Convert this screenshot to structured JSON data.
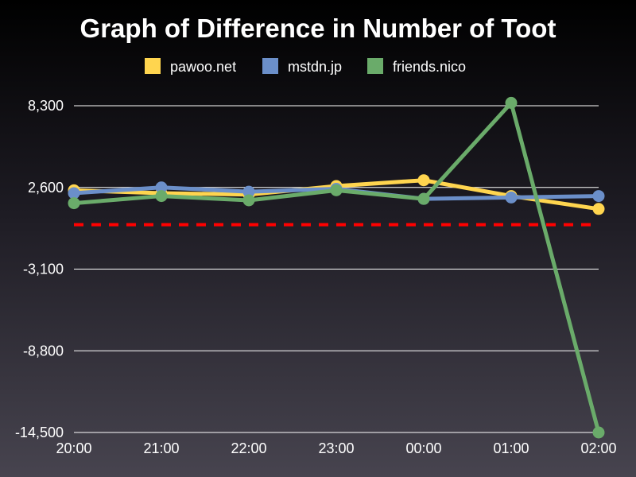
{
  "chart_data": {
    "type": "line",
    "title": "Graph of Difference in Number of Toot",
    "categories": [
      "20:00",
      "21:00",
      "22:00",
      "23:00",
      "00:00",
      "01:00",
      "02:00"
    ],
    "y_ticks": [
      "8,300",
      "2,600",
      "-3,100",
      "-8,800",
      "-14,500"
    ],
    "y_tick_values": [
      8300,
      2600,
      -3100,
      -8800,
      -14500
    ],
    "ylim": [
      -14500,
      8300
    ],
    "grid": true,
    "legend_position": "top-center",
    "reference_line": {
      "value": 0,
      "color": "#ff0000",
      "style": "dashed"
    },
    "series": [
      {
        "name": "pawoo.net",
        "color": "#ffd54f",
        "values": [
          2400,
          2200,
          2100,
          2700,
          3100,
          2000,
          1100
        ]
      },
      {
        "name": "mstdn.jp",
        "color": "#6b8fc9",
        "values": [
          2200,
          2600,
          2300,
          2500,
          1800,
          1900,
          2000
        ]
      },
      {
        "name": "friends.nico",
        "color": "#6aab6a",
        "values": [
          1500,
          2000,
          1700,
          2400,
          1800,
          8500,
          -14500
        ]
      }
    ]
  }
}
